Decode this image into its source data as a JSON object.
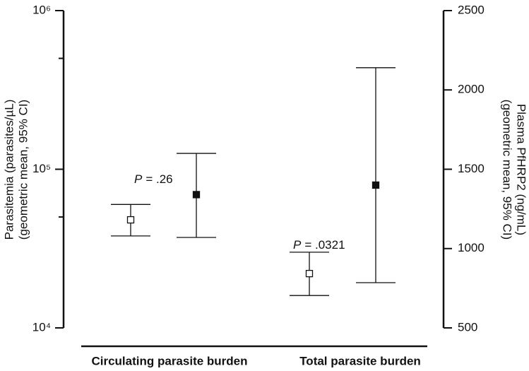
{
  "chart_data": {
    "type": "errorbar",
    "categories": [
      "Circulating parasite burden",
      "Total parasite burden"
    ],
    "ylabel": [
      "Parasitemia (parasites/µL)",
      "(geometric mean, 95% CI)"
    ],
    "y2label": [
      "Plasma PfHRP2 (ng/mL)",
      "(geometric mean, 95% CI)"
    ],
    "ylim": [
      10000,
      1000000
    ],
    "yscale": "log",
    "yticks": [
      {
        "value": 10000,
        "label": "10⁴"
      },
      {
        "value": 100000,
        "label": "10⁵"
      },
      {
        "value": 1000000,
        "label": "10⁶"
      }
    ],
    "yminorticks": [
      50000,
      500000
    ],
    "y2lim": [
      500,
      2500
    ],
    "y2ticks": [
      500,
      1000,
      1500,
      2000,
      2500
    ],
    "series": [
      {
        "marker": "open-square",
        "color": "#111111",
        "axis": "y",
        "values": [
          48000,
          22000
        ],
        "lower": [
          38000,
          16000
        ],
        "upper": [
          60000,
          30000
        ]
      },
      {
        "marker": "filled-square",
        "color": "#111111",
        "axis": "y2",
        "values": [
          1340,
          1400
        ],
        "lower": [
          1070,
          785
        ],
        "upper": [
          1600,
          2140
        ]
      }
    ],
    "annotations": [
      {
        "italic": "P",
        "text": "= .26"
      },
      {
        "italic": "P",
        "text": "= .0321"
      }
    ]
  }
}
